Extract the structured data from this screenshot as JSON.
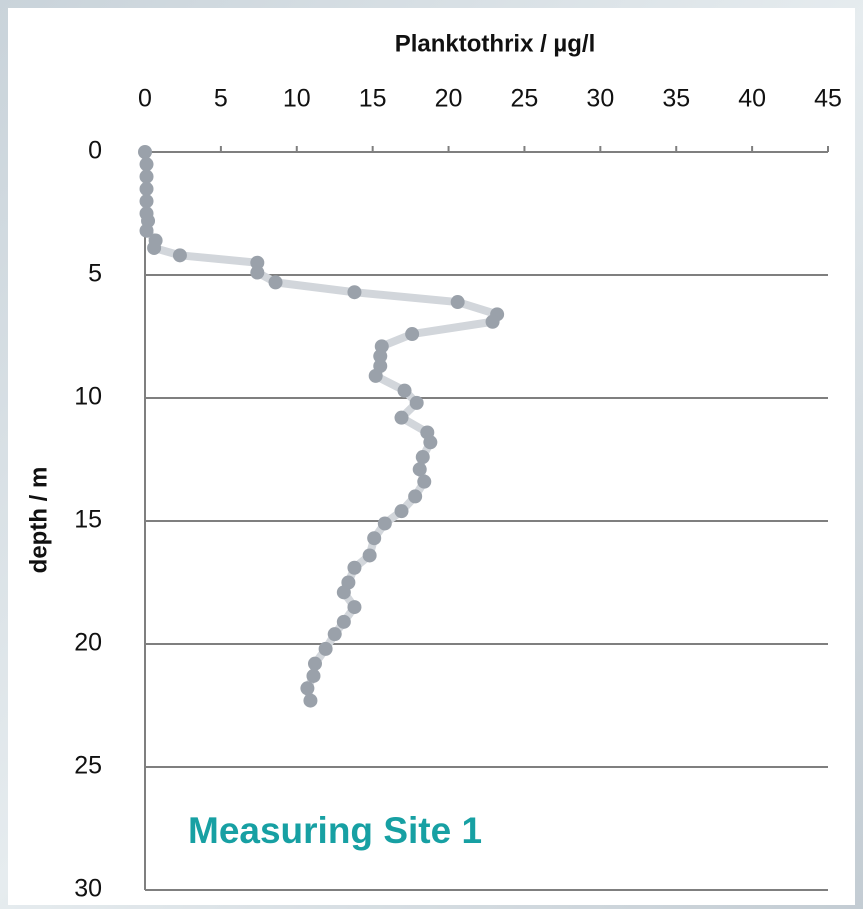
{
  "chart_data": {
    "type": "line",
    "title": "Planktothrix / µg/l",
    "y_label": "depth / m",
    "annotation": "Measuring Site 1",
    "x": [
      0,
      0.1,
      0.1,
      0.1,
      0.1,
      0.1,
      0.2,
      0.1,
      0.7,
      0.6,
      2.3,
      7.4,
      7.4,
      8.6,
      13.8,
      20.6,
      23.2,
      22.9,
      17.6,
      15.6,
      15.5,
      15.5,
      15.2,
      17.1,
      17.9,
      16.9,
      18.6,
      18.8,
      18.3,
      18.1,
      18.4,
      17.8,
      16.9,
      15.8,
      15.1,
      14.8,
      13.8,
      13.4,
      13.1,
      13.8,
      13.1,
      12.5,
      11.9,
      11.2,
      11.1,
      10.7,
      10.9
    ],
    "values": [
      0,
      0.5,
      1,
      1.5,
      2,
      2.5,
      2.8,
      3.2,
      3.6,
      3.9,
      4.2,
      4.5,
      4.9,
      5.3,
      5.7,
      6.1,
      6.6,
      6.9,
      7.4,
      7.9,
      8.3,
      8.7,
      9.1,
      9.7,
      10.2,
      10.8,
      11.4,
      11.8,
      12.4,
      12.9,
      13.4,
      14.0,
      14.6,
      15.1,
      15.7,
      16.4,
      16.9,
      17.5,
      17.9,
      18.5,
      19.1,
      19.6,
      20.2,
      20.8,
      21.3,
      21.8,
      22.3
    ],
    "color": "#9aa1aa",
    "line_color": "#d2d6db",
    "xlim": [
      0,
      45
    ],
    "xticks": [
      0,
      5,
      10,
      15,
      20,
      25,
      30,
      35,
      40,
      45
    ],
    "ylim": [
      0,
      30
    ],
    "yticks": [
      0,
      5,
      10,
      15,
      20,
      25,
      30
    ],
    "y_reversed": true,
    "grid": true
  }
}
